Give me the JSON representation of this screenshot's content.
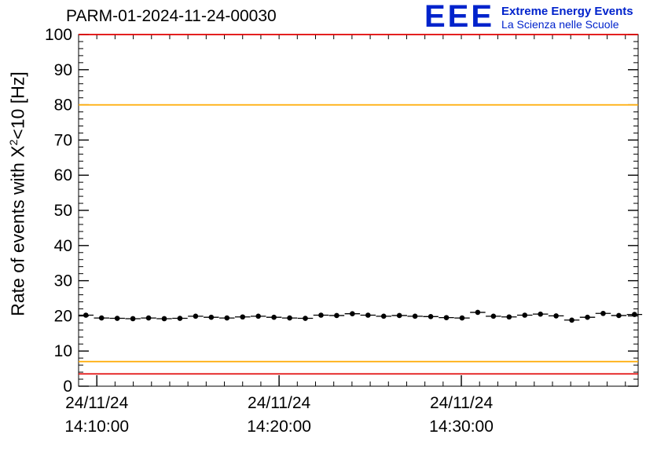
{
  "header": {
    "title": "PARM-01-2024-11-24-00030",
    "logo_text": "EEE",
    "logo_line1": "Extreme Energy Events",
    "logo_line2": "La Scienza nelle Scuole",
    "logo_color": "#0023cc"
  },
  "chart_data": {
    "type": "line",
    "title": "PARM-01-2024-11-24-00030",
    "ylabel": "Rate of events with X²<10 [Hz]",
    "ylabel_parts": {
      "prefix": "Rate of events with X",
      "sup": "2",
      "suffix": "<10 [Hz]"
    },
    "ylim": [
      0,
      100
    ],
    "y_major_step": 10,
    "y_minor_step": 2,
    "xlim_minutes": [
      0,
      30.7
    ],
    "x_minor_step": 1,
    "x_ticks": [
      {
        "pos": 1.0,
        "line1": "24/11/24",
        "line2": "14:10:00"
      },
      {
        "pos": 11.0,
        "line1": "24/11/24",
        "line2": "14:20:00"
      },
      {
        "pos": 21.0,
        "line1": "24/11/24",
        "line2": "14:30:00"
      }
    ],
    "grid": false,
    "legend": "none",
    "reference_lines": [
      {
        "y": 100,
        "color": "#e00000"
      },
      {
        "y": 80,
        "color": "#ffaa00"
      },
      {
        "y": 7,
        "color": "#ffaa00"
      },
      {
        "y": 3.5,
        "color": "#e00000"
      }
    ],
    "series": [
      {
        "name": "rate",
        "marker": "filled-circle",
        "color": "#000000",
        "x_error_minutes": 0.42,
        "y_error": 0.6,
        "points": [
          {
            "x": 0.4,
            "y": 20.2
          },
          {
            "x": 1.26,
            "y": 19.4
          },
          {
            "x": 2.12,
            "y": 19.3
          },
          {
            "x": 2.98,
            "y": 19.2
          },
          {
            "x": 3.84,
            "y": 19.4
          },
          {
            "x": 4.7,
            "y": 19.2
          },
          {
            "x": 5.56,
            "y": 19.3
          },
          {
            "x": 6.42,
            "y": 19.9
          },
          {
            "x": 7.28,
            "y": 19.6
          },
          {
            "x": 8.14,
            "y": 19.4
          },
          {
            "x": 9.0,
            "y": 19.7
          },
          {
            "x": 9.86,
            "y": 19.9
          },
          {
            "x": 10.72,
            "y": 19.6
          },
          {
            "x": 11.58,
            "y": 19.4
          },
          {
            "x": 12.44,
            "y": 19.3
          },
          {
            "x": 13.3,
            "y": 20.2
          },
          {
            "x": 14.16,
            "y": 20.1
          },
          {
            "x": 15.02,
            "y": 20.6
          },
          {
            "x": 15.88,
            "y": 20.2
          },
          {
            "x": 16.74,
            "y": 19.9
          },
          {
            "x": 17.6,
            "y": 20.1
          },
          {
            "x": 18.46,
            "y": 19.9
          },
          {
            "x": 19.32,
            "y": 19.8
          },
          {
            "x": 20.18,
            "y": 19.5
          },
          {
            "x": 21.04,
            "y": 19.4
          },
          {
            "x": 21.9,
            "y": 21.0
          },
          {
            "x": 22.76,
            "y": 19.9
          },
          {
            "x": 23.62,
            "y": 19.7
          },
          {
            "x": 24.48,
            "y": 20.2
          },
          {
            "x": 25.34,
            "y": 20.5
          },
          {
            "x": 26.2,
            "y": 20.0
          },
          {
            "x": 27.06,
            "y": 18.8
          },
          {
            "x": 27.92,
            "y": 19.6
          },
          {
            "x": 28.78,
            "y": 20.7
          },
          {
            "x": 29.64,
            "y": 20.1
          },
          {
            "x": 30.5,
            "y": 20.4
          }
        ]
      }
    ]
  }
}
